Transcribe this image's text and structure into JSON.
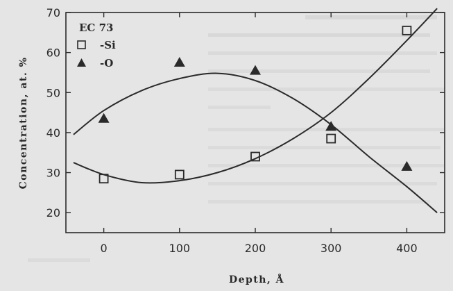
{
  "chart_data": {
    "type": "scatter",
    "xlabel": "Depth, Å",
    "ylabel": "Concentration, at. %",
    "xlim": [
      -50,
      450
    ],
    "ylim": [
      15,
      70
    ],
    "x_ticks": [
      0,
      100,
      200,
      300,
      400
    ],
    "y_ticks": [
      20,
      30,
      40,
      50,
      60,
      70
    ],
    "legend": {
      "title": "EC 73",
      "placement": "top-left"
    },
    "series": [
      {
        "name": "-Si",
        "marker": "open-square",
        "points": [
          {
            "x": 0,
            "y": 28.5
          },
          {
            "x": 100,
            "y": 29.5
          },
          {
            "x": 200,
            "y": 34
          },
          {
            "x": 300,
            "y": 38.5
          },
          {
            "x": 400,
            "y": 65.5
          }
        ],
        "fit": [
          {
            "x": -40,
            "y": 32.5
          },
          {
            "x": 0,
            "y": 29.5
          },
          {
            "x": 50,
            "y": 27.5
          },
          {
            "x": 100,
            "y": 28
          },
          {
            "x": 150,
            "y": 30
          },
          {
            "x": 200,
            "y": 33.5
          },
          {
            "x": 250,
            "y": 38.5
          },
          {
            "x": 300,
            "y": 45
          },
          {
            "x": 350,
            "y": 53.5
          },
          {
            "x": 400,
            "y": 63
          },
          {
            "x": 440,
            "y": 71
          }
        ]
      },
      {
        "name": "-O",
        "marker": "filled-triangle",
        "points": [
          {
            "x": 0,
            "y": 43.5
          },
          {
            "x": 100,
            "y": 57.5
          },
          {
            "x": 200,
            "y": 55.5
          },
          {
            "x": 300,
            "y": 41.5
          },
          {
            "x": 400,
            "y": 31.5
          }
        ],
        "fit": [
          {
            "x": -40,
            "y": 39.5
          },
          {
            "x": 0,
            "y": 45.5
          },
          {
            "x": 50,
            "y": 50.5
          },
          {
            "x": 100,
            "y": 53.5
          },
          {
            "x": 150,
            "y": 54.8
          },
          {
            "x": 200,
            "y": 53
          },
          {
            "x": 250,
            "y": 48.5
          },
          {
            "x": 300,
            "y": 42
          },
          {
            "x": 350,
            "y": 34
          },
          {
            "x": 400,
            "y": 26.5
          },
          {
            "x": 440,
            "y": 20
          }
        ]
      }
    ]
  },
  "colors": {
    "ink": "#2a2a2a",
    "background": "#e4e5e4"
  }
}
